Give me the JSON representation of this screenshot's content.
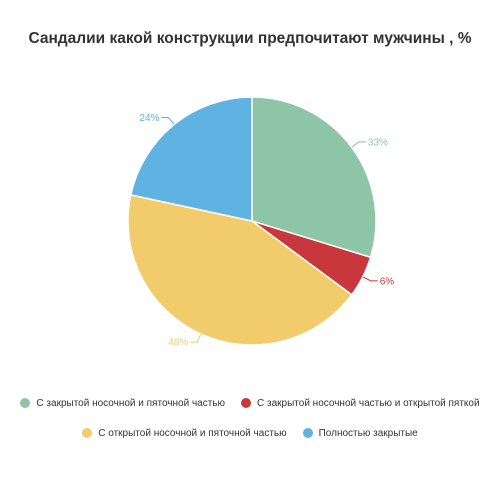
{
  "chart_data": {
    "type": "pie",
    "title": "Сандалии какой конструкции предпочитают мужчины , %",
    "categories": [
      "С закрытой носочной и пяточной частью",
      "С закрытой носочной частью и открытой пяткой",
      "С открытой носочной и пяточной частью",
      "Полностью закрытые"
    ],
    "values": [
      33,
      6,
      48,
      24
    ],
    "labels": [
      "33%",
      "6%",
      "48%",
      "24%"
    ],
    "colors": [
      "#8dc5a6",
      "#c8373b",
      "#f2cc6b",
      "#5fb3e3"
    ],
    "start_angle_deg": 0,
    "direction": "clockwise",
    "legend_position": "bottom"
  }
}
